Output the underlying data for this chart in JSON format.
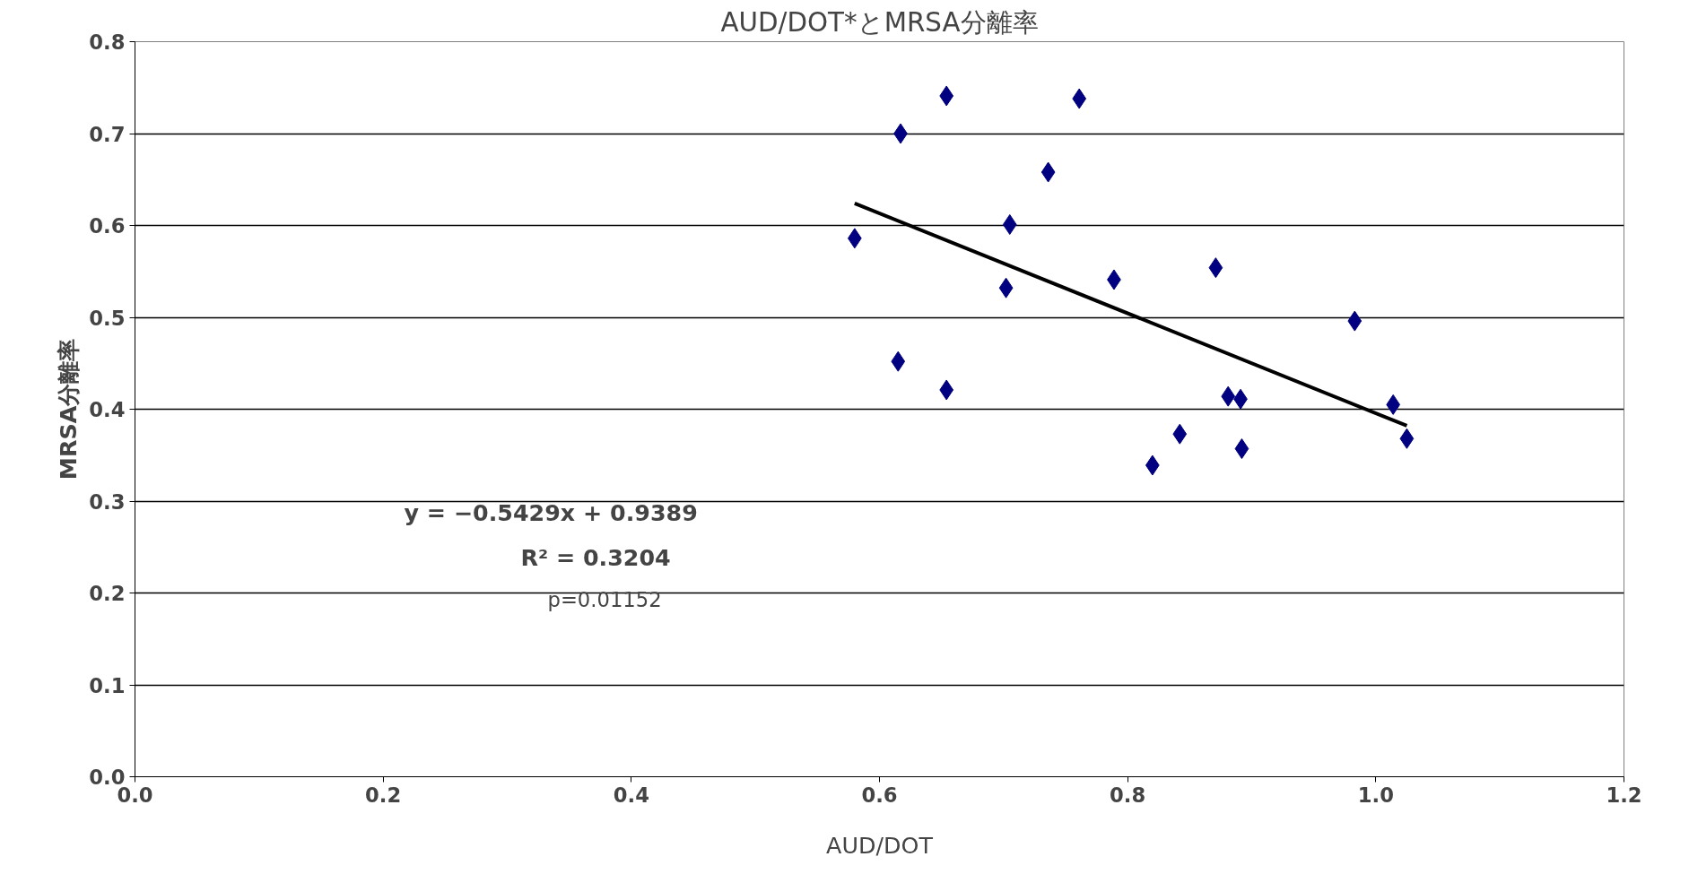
{
  "chart_data": {
    "type": "scatter",
    "title": "AUD/DOT*とMRSA分離率",
    "xlabel": "AUD/DOT",
    "ylabel": "MRSA分離率",
    "series": [
      {
        "color": "#000080",
        "marker": "diamond",
        "x": [
          0.58,
          0.617,
          0.654,
          0.761,
          0.736,
          0.705,
          0.702,
          0.789,
          0.871,
          0.615,
          0.654,
          0.983,
          0.881,
          0.891,
          0.842,
          0.82,
          0.892,
          1.014,
          1.025
        ],
        "values": [
          0.586,
          0.7,
          0.741,
          0.738,
          0.658,
          0.601,
          0.532,
          0.541,
          0.554,
          0.452,
          0.421,
          0.496,
          0.414,
          0.411,
          0.373,
          0.339,
          0.357,
          0.405,
          0.368
        ]
      },
      {
        "type": "line",
        "color": "#000000",
        "marker": "none",
        "x": [
          0.58,
          1.025
        ],
        "values": [
          0.624,
          0.382
        ]
      }
    ],
    "annotations": [
      "y = −0.5429x + 0.9389",
      "R² = 0.3204",
      "p=0.01152"
    ],
    "xlim": [
      0.0,
      1.2
    ],
    "xticks": [
      {
        "value": 0,
        "label": "0.0"
      },
      0.2,
      0.4,
      0.6,
      0.8,
      {
        "value": 1,
        "label": "1.0"
      },
      1.2
    ],
    "ylim": [
      0.0,
      0.8
    ],
    "yticks": [
      {
        "value": 0,
        "label": "0.0"
      },
      0.1,
      0.2,
      0.3,
      0.4,
      0.5,
      0.6,
      0.7,
      0.8
    ],
    "grid": "y"
  }
}
